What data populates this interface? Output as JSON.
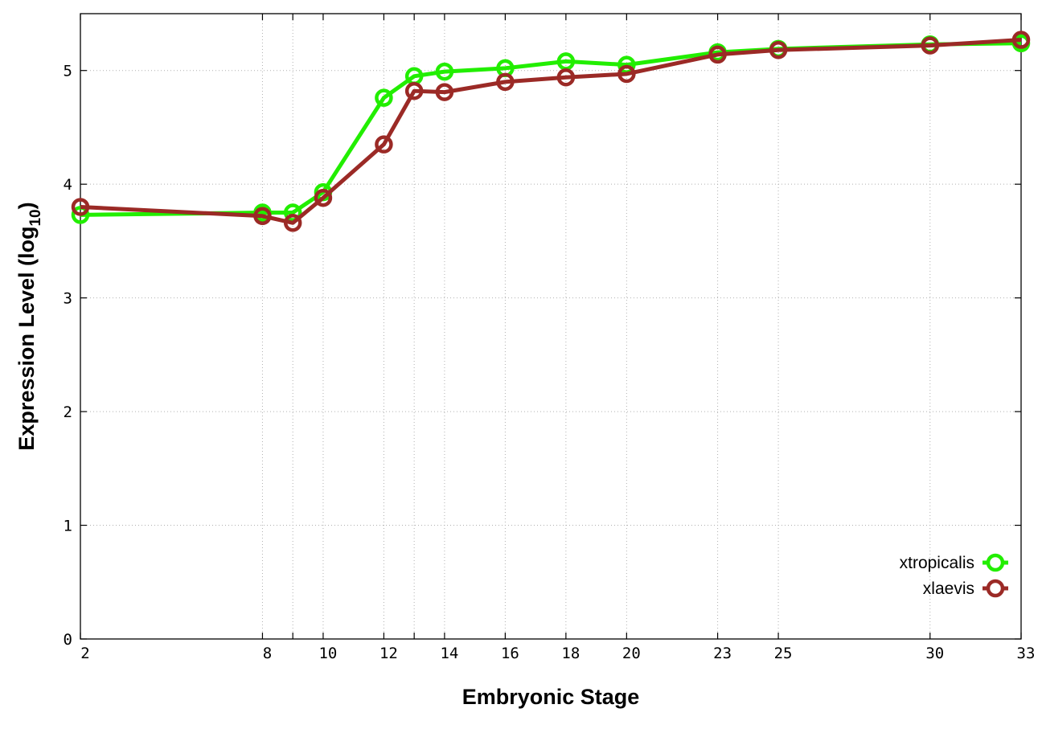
{
  "chart_data": {
    "type": "line",
    "xlabel": "Embryonic Stage",
    "ylabel_main": "Expression Level (log",
    "ylabel_sub": "10",
    "ylabel_close": ")",
    "x_ticks": [
      "2",
      "8",
      "9",
      "10",
      "12",
      "13",
      "14",
      "16",
      "18",
      "20",
      "23",
      "25",
      "30",
      "33"
    ],
    "x_ticks_labeled": [
      "2",
      "8",
      "10",
      "12",
      "14",
      "16",
      "18",
      "20",
      "23",
      "25",
      "30",
      "33"
    ],
    "y_ticks": [
      "0",
      "1",
      "2",
      "3",
      "4",
      "5"
    ],
    "ylim": [
      0,
      5.5
    ],
    "grid": true,
    "legend_position": "bottom-right",
    "series": [
      {
        "name": "xtropicalis",
        "color": "#22ee00",
        "values": [
          3.73,
          3.75,
          3.75,
          3.93,
          4.76,
          4.95,
          4.99,
          5.02,
          5.08,
          5.05,
          5.16,
          5.19,
          5.23,
          5.24
        ]
      },
      {
        "name": "xlaevis",
        "color": "#9b2a26",
        "values": [
          3.8,
          3.72,
          3.66,
          3.88,
          4.35,
          4.82,
          4.81,
          4.9,
          4.94,
          4.97,
          5.14,
          5.18,
          5.22,
          5.27
        ]
      }
    ]
  }
}
